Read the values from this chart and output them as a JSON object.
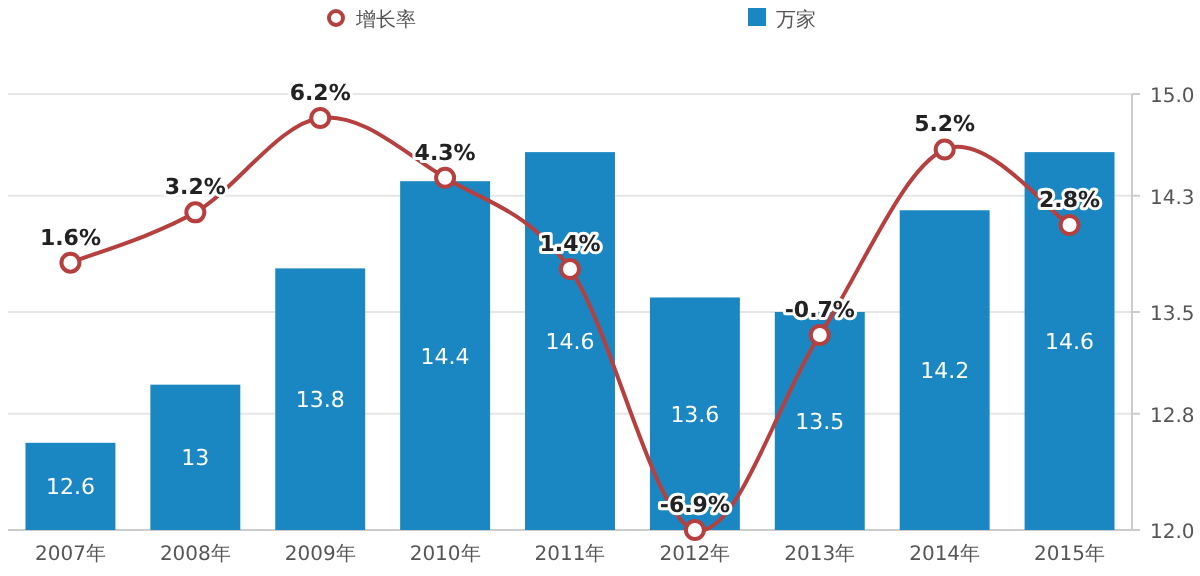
{
  "chart_data": {
    "type": "bar",
    "categories": [
      "2007年",
      "2008年",
      "2009年",
      "2010年",
      "2011年",
      "2012年",
      "2013年",
      "2014年",
      "2015年"
    ],
    "series": [
      {
        "name": "增长率",
        "type": "line",
        "color": "#b5403f",
        "values": [
          1.6,
          3.2,
          6.2,
          4.3,
          1.4,
          -6.9,
          -0.7,
          5.2,
          2.8
        ],
        "value_labels": [
          "1.6%",
          "3.2%",
          "6.2%",
          "4.3%",
          "1.4%",
          "-6.9%",
          "-0.7%",
          "5.2%",
          "2.8%"
        ]
      },
      {
        "name": "万家",
        "axis": "y2",
        "color": "#1a86c2",
        "values": [
          12.6,
          13,
          13.8,
          14.4,
          14.6,
          13.6,
          13.5,
          14.2,
          14.6
        ],
        "value_labels": [
          "12.6",
          "13",
          "13.8",
          "14.4",
          "14.6",
          "13.6",
          "13.5",
          "14.2",
          "14.6"
        ]
      }
    ],
    "y2lim": [
      12,
      15
    ],
    "y2ticks": [
      {
        "value": 12,
        "label": "12.0"
      },
      {
        "value": 12.8,
        "label": "12.8"
      },
      {
        "value": 13.5,
        "label": "13.5"
      },
      {
        "value": 14.3,
        "label": "14.3"
      },
      {
        "value": 15,
        "label": "15.0"
      }
    ],
    "grid": true,
    "legend": "top",
    "marker": "circle",
    "line_style": "solid"
  }
}
